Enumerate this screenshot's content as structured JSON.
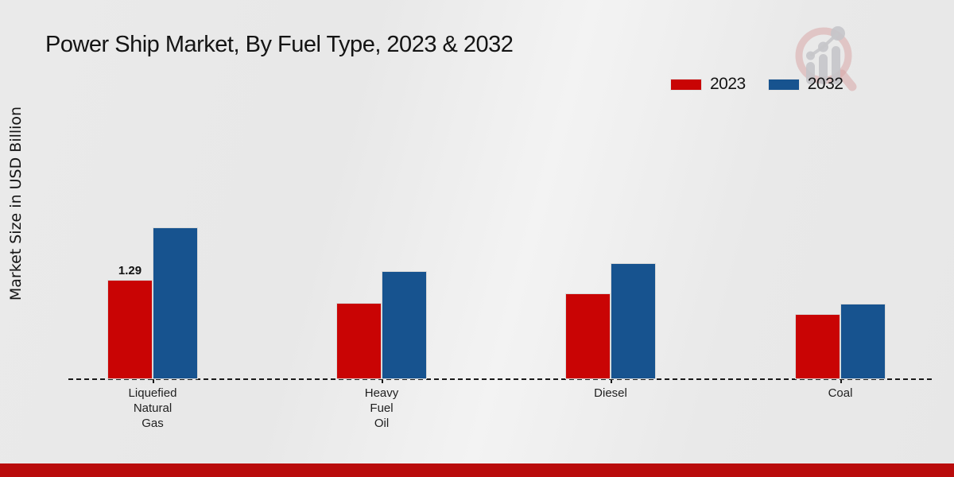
{
  "title": "Power Ship Market, By Fuel Type, 2023 & 2032",
  "ylabel": "Market Size in USD Billion",
  "legend": [
    {
      "label": "2023",
      "color": "#c90404"
    },
    {
      "label": "2032",
      "color": "#17538f"
    }
  ],
  "colors": {
    "bar_2023": "#c90404",
    "bar_2032": "#17538f",
    "bottom_strip": "#b90b0b",
    "axis_line": "#1a1a1a",
    "background": "#e9e9e9"
  },
  "watermark_icon": "magnifier-bar-chart-logo",
  "chart_data": {
    "type": "bar",
    "title": "Power Ship Market, By Fuel Type, 2023 & 2032",
    "xlabel": "",
    "ylabel": "Market Size in USD Billion",
    "categories": [
      "Liquefied Natural Gas",
      "Heavy Fuel Oil",
      "Diesel",
      "Coal"
    ],
    "category_label_lines": [
      [
        "Liquefied",
        "Natural",
        "Gas"
      ],
      [
        "Heavy",
        "Fuel",
        "Oil"
      ],
      [
        "Diesel"
      ],
      [
        "Coal"
      ]
    ],
    "series": [
      {
        "name": "2023",
        "color": "#c90404",
        "values": [
          1.29,
          0.99,
          1.11,
          0.85
        ],
        "value_labels": [
          "1.29",
          "",
          "",
          ""
        ]
      },
      {
        "name": "2032",
        "color": "#17538f",
        "values": [
          1.97,
          1.4,
          1.51,
          0.98
        ],
        "value_labels": [
          "",
          "",
          "",
          ""
        ]
      }
    ],
    "ylim": [
      0,
      2.2
    ],
    "y_axis_ticks": "none",
    "grid": false,
    "legend_position": "top-right",
    "baseline_style": "dashed"
  }
}
